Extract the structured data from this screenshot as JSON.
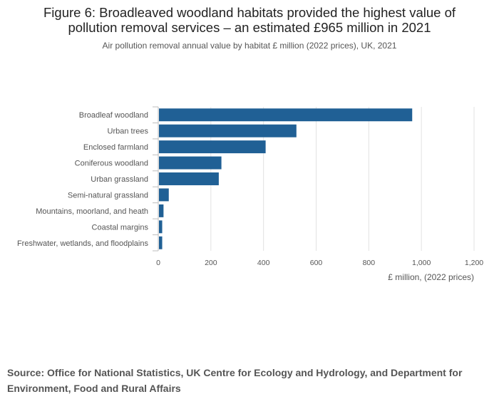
{
  "header": {
    "title_line1": "Figure 6: Broadleaved woodland habitats provided the highest value of",
    "title_line2": "pollution removal services – an estimated £965 million in 2021",
    "subtitle": "Air pollution removal annual value by habitat £ million (2022 prices), UK, 2021"
  },
  "chart_data": {
    "type": "bar",
    "orientation": "horizontal",
    "categories": [
      "Broadleaf woodland",
      "Urban trees",
      "Enclosed farmland",
      "Coniferous woodland",
      "Urban grassland",
      "Semi-natural grassland",
      "Mountains, moorland, and heath",
      "Coastal margins",
      "Freshwater, wetlands, and floodplains"
    ],
    "values": [
      965,
      525,
      408,
      240,
      230,
      40,
      20,
      15,
      15
    ],
    "xlabel": "£ million, (2022 prices)",
    "ylabel": "",
    "xlim": [
      0,
      1200
    ],
    "xticks": [
      0,
      200,
      400,
      600,
      800,
      1000,
      1200
    ],
    "xtick_labels": [
      "0",
      "200",
      "400",
      "600",
      "800",
      "1,000",
      "1,200"
    ],
    "bar_color": "#206095",
    "grid": true
  },
  "footer": {
    "source": "Source: Office for National Statistics, UK Centre for Ecology and Hydrology, and Department for Environment, Food and Rural Affairs"
  }
}
